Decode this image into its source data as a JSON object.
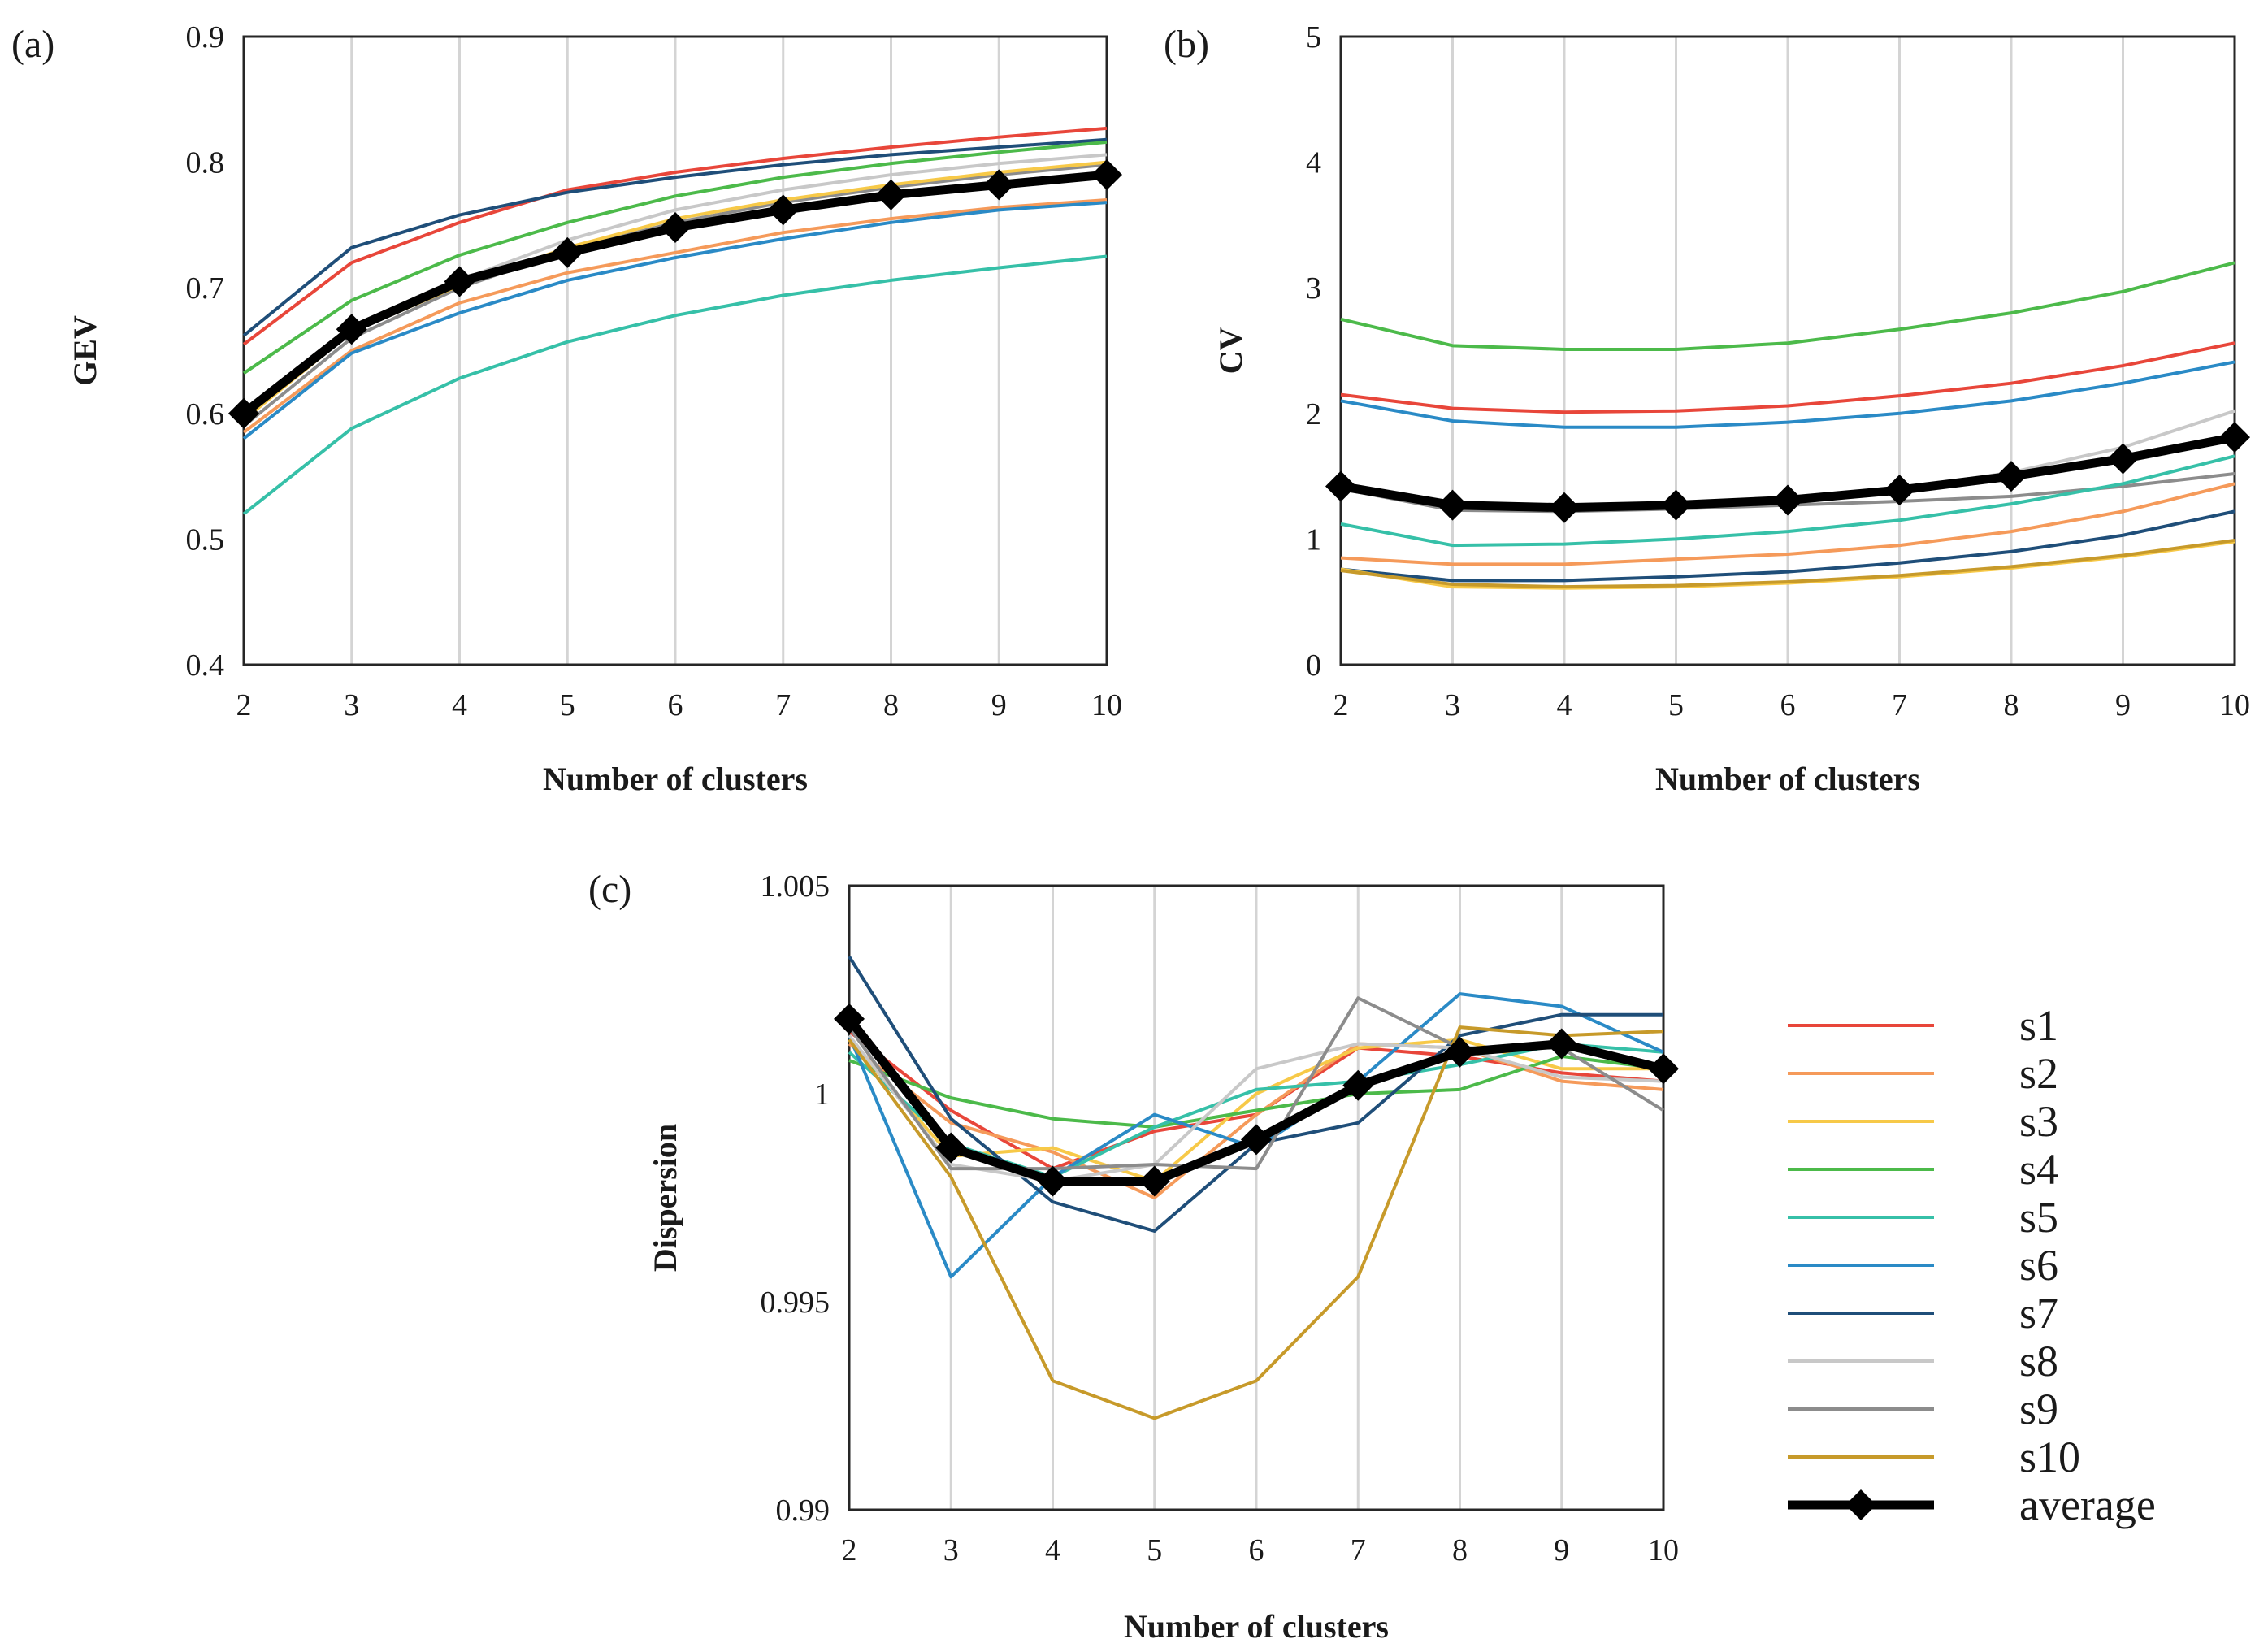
{
  "series_colors": {
    "s1": "#e8463a",
    "s2": "#f59a5a",
    "s3": "#f7c948",
    "s4": "#4cba4a",
    "s5": "#36c0a8",
    "s6": "#2a8ac6",
    "s7": "#1f4e79",
    "s8": "#c8c8c8",
    "s9": "#8c8c8c",
    "s10": "#c79a2a",
    "average": "#000000"
  },
  "legend": {
    "items": [
      "s1",
      "s2",
      "s3",
      "s4",
      "s5",
      "s6",
      "s7",
      "s8",
      "s9",
      "s10",
      "average"
    ]
  },
  "chart_data": [
    {
      "id": "a",
      "panel_label": "(a)",
      "type": "line",
      "xlabel": "Number of clusters",
      "ylabel": "GEV",
      "x": [
        2,
        3,
        4,
        5,
        6,
        7,
        8,
        9,
        10
      ],
      "ylim": [
        0.4,
        0.9
      ],
      "yticks": [
        0.4,
        0.5,
        0.6,
        0.7,
        0.8,
        0.9
      ],
      "ytick_labels": [
        "0.4",
        "0.5",
        "0.6",
        "0.7",
        "0.8",
        "0.9"
      ],
      "xtick_labels": [
        "2",
        "3",
        "4",
        "5",
        "6",
        "7",
        "8",
        "9",
        "10"
      ],
      "series": [
        {
          "name": "s1",
          "values": [
            0.655,
            0.72,
            0.752,
            0.778,
            0.792,
            0.803,
            0.812,
            0.82,
            0.827
          ]
        },
        {
          "name": "s7",
          "values": [
            0.662,
            0.732,
            0.758,
            0.776,
            0.788,
            0.798,
            0.806,
            0.812,
            0.818
          ]
        },
        {
          "name": "s4",
          "values": [
            0.632,
            0.69,
            0.726,
            0.752,
            0.773,
            0.788,
            0.799,
            0.808,
            0.816
          ]
        },
        {
          "name": "s8",
          "values": [
            0.598,
            0.668,
            0.706,
            0.738,
            0.762,
            0.778,
            0.79,
            0.799,
            0.806
          ]
        },
        {
          "name": "s9",
          "values": [
            0.59,
            0.66,
            0.7,
            0.73,
            0.752,
            0.768,
            0.78,
            0.79,
            0.798
          ]
        },
        {
          "name": "s3",
          "values": [
            0.595,
            0.665,
            0.702,
            0.732,
            0.755,
            0.77,
            0.782,
            0.792,
            0.8
          ]
        },
        {
          "name": "s2",
          "values": [
            0.585,
            0.65,
            0.688,
            0.712,
            0.728,
            0.744,
            0.755,
            0.764,
            0.77
          ]
        },
        {
          "name": "s6",
          "values": [
            0.58,
            0.648,
            0.68,
            0.706,
            0.724,
            0.739,
            0.752,
            0.762,
            0.768
          ]
        },
        {
          "name": "s5",
          "values": [
            0.52,
            0.588,
            0.628,
            0.657,
            0.678,
            0.694,
            0.706,
            0.716,
            0.725
          ]
        },
        {
          "name": "average",
          "values": [
            0.6,
            0.667,
            0.705,
            0.728,
            0.748,
            0.762,
            0.774,
            0.782,
            0.79
          ]
        }
      ]
    },
    {
      "id": "b",
      "panel_label": "(b)",
      "type": "line",
      "xlabel": "Number of clusters",
      "ylabel": "CV",
      "x": [
        2,
        3,
        4,
        5,
        6,
        7,
        8,
        9,
        10
      ],
      "ylim": [
        0,
        5
      ],
      "yticks": [
        0,
        1,
        2,
        3,
        4,
        5
      ],
      "ytick_labels": [
        "0",
        "1",
        "2",
        "3",
        "4",
        "5"
      ],
      "xtick_labels": [
        "2",
        "3",
        "4",
        "5",
        "6",
        "7",
        "8",
        "9",
        "10"
      ],
      "series": [
        {
          "name": "s4",
          "values": [
            2.75,
            2.54,
            2.51,
            2.51,
            2.56,
            2.67,
            2.8,
            2.97,
            3.2
          ]
        },
        {
          "name": "s1",
          "values": [
            2.15,
            2.04,
            2.01,
            2.02,
            2.06,
            2.14,
            2.24,
            2.38,
            2.56
          ]
        },
        {
          "name": "s6",
          "values": [
            2.1,
            1.94,
            1.89,
            1.89,
            1.93,
            2.0,
            2.1,
            2.24,
            2.41
          ]
        },
        {
          "name": "s8",
          "values": [
            1.42,
            1.27,
            1.25,
            1.27,
            1.31,
            1.4,
            1.53,
            1.73,
            2.02
          ]
        },
        {
          "name": "s9",
          "values": [
            1.4,
            1.23,
            1.22,
            1.24,
            1.27,
            1.3,
            1.34,
            1.42,
            1.52
          ]
        },
        {
          "name": "s5",
          "values": [
            1.12,
            0.95,
            0.96,
            1.0,
            1.06,
            1.15,
            1.28,
            1.44,
            1.66
          ]
        },
        {
          "name": "s2",
          "values": [
            0.85,
            0.8,
            0.8,
            0.84,
            0.88,
            0.95,
            1.06,
            1.22,
            1.44
          ]
        },
        {
          "name": "s7",
          "values": [
            0.76,
            0.67,
            0.67,
            0.7,
            0.74,
            0.81,
            0.9,
            1.03,
            1.22
          ]
        },
        {
          "name": "s3",
          "values": [
            0.76,
            0.62,
            0.61,
            0.62,
            0.65,
            0.7,
            0.77,
            0.86,
            0.98
          ]
        },
        {
          "name": "s10",
          "values": [
            0.75,
            0.64,
            0.62,
            0.63,
            0.66,
            0.71,
            0.78,
            0.87,
            0.99
          ]
        },
        {
          "name": "average",
          "values": [
            1.42,
            1.27,
            1.25,
            1.27,
            1.31,
            1.39,
            1.5,
            1.64,
            1.81
          ]
        }
      ]
    },
    {
      "id": "c",
      "panel_label": "(c)",
      "type": "line",
      "xlabel": "Number of clusters",
      "ylabel": "Dispersion",
      "x": [
        2,
        3,
        4,
        5,
        6,
        7,
        8,
        9,
        10
      ],
      "ylim": [
        0.99,
        1.005
      ],
      "yticks": [
        0.99,
        0.995,
        1.0,
        1.005
      ],
      "ytick_labels": [
        "0.99",
        "0.995",
        "1",
        "1.005"
      ],
      "xtick_labels": [
        "2",
        "3",
        "4",
        "5",
        "6",
        "7",
        "8",
        "9",
        "10"
      ],
      "series": [
        {
          "name": "s1",
          "values": [
            1.0015,
            0.9996,
            0.9982,
            0.9991,
            0.9995,
            1.0011,
            1.0009,
            1.0005,
            1.0003
          ]
        },
        {
          "name": "s2",
          "values": [
            1.0012,
            0.9993,
            0.9986,
            0.9975,
            0.9995,
            1.0012,
            1.0011,
            1.0003,
            1.0001
          ]
        },
        {
          "name": "s3",
          "values": [
            1.0013,
            0.9985,
            0.9987,
            0.9979,
            1.0,
            1.0011,
            1.0013,
            1.0006,
            1.0006
          ]
        },
        {
          "name": "s4",
          "values": [
            1.0008,
            0.9999,
            0.9994,
            0.9992,
            0.9996,
            1.0,
            1.0001,
            1.0009,
            1.0006
          ]
        },
        {
          "name": "s5",
          "values": [
            1.001,
            0.9988,
            0.998,
            0.9992,
            1.0001,
            1.0003,
            1.0007,
            1.0012,
            1.001
          ]
        },
        {
          "name": "s6",
          "values": [
            1.0014,
            0.9956,
            0.998,
            0.9995,
            0.9987,
            1.0003,
            1.0024,
            1.0021,
            1.001
          ]
        },
        {
          "name": "s7",
          "values": [
            1.0033,
            0.9994,
            0.9974,
            0.9967,
            0.9988,
            0.9993,
            1.0014,
            1.0019,
            1.0019
          ]
        },
        {
          "name": "s8",
          "values": [
            1.0014,
            0.9983,
            0.9979,
            0.9983,
            1.0006,
            1.0012,
            1.0011,
            1.0004,
            1.0003
          ]
        },
        {
          "name": "s9",
          "values": [
            1.0016,
            0.9982,
            0.9982,
            0.9983,
            0.9982,
            1.0023,
            1.0011,
            1.0011,
            0.9996
          ]
        },
        {
          "name": "s10",
          "values": [
            1.0013,
            0.998,
            0.9931,
            0.9922,
            0.9931,
            0.9956,
            1.0016,
            1.0014,
            1.0015
          ]
        },
        {
          "name": "average",
          "values": [
            1.0018,
            0.9987,
            0.9979,
            0.9979,
            0.9989,
            1.0002,
            1.001,
            1.0012,
            1.0006
          ]
        }
      ]
    }
  ]
}
